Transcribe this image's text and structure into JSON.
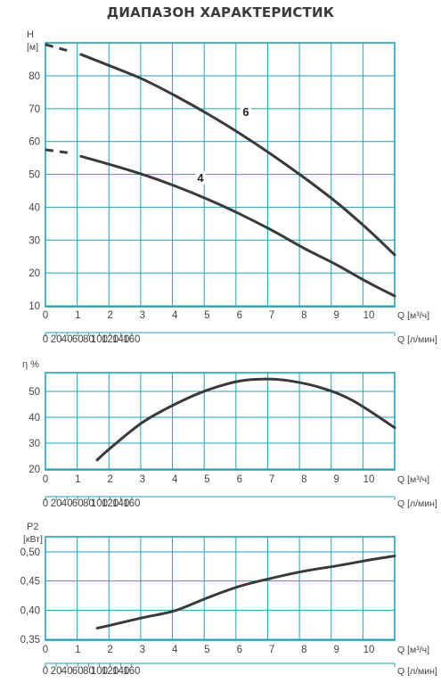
{
  "title": "ДИАПАЗОН ХАРАКТЕРИСТИК",
  "colors": {
    "grid": "#1fa3b4",
    "curve": "#3a3a3a",
    "text": "#444444"
  },
  "chart_data": [
    {
      "type": "line",
      "ylabel": "H",
      "yunit": "[м]",
      "yticks": [
        "10",
        "20",
        "30",
        "40",
        "50",
        "60",
        "70",
        "80"
      ],
      "ylim": [
        10,
        91
      ],
      "xlim": [
        0,
        10.8
      ],
      "x_ticks_m3h": [
        "0",
        "1",
        "2",
        "3",
        "4",
        "5",
        "6",
        "7",
        "8",
        "9",
        "10"
      ],
      "x_unit_m3h": "Q [м³/ч]",
      "x_ticks_lmin": [
        "0",
        "20",
        "40",
        "60",
        "80",
        "100",
        "120",
        "140",
        "160"
      ],
      "x_unit_lmin": "Q [л/мин]",
      "grid": true,
      "series": [
        {
          "name": "6",
          "x": [
            1.1,
            2,
            3,
            4,
            5,
            6,
            7,
            8,
            9,
            10,
            10.8
          ],
          "y": [
            86.5,
            83,
            79,
            74,
            68.5,
            62.5,
            56,
            49,
            41.5,
            33,
            25.5
          ],
          "dashed_x": [
            0,
            0.75
          ],
          "dashed_y": [
            89.5,
            87.5
          ]
        },
        {
          "name": "4",
          "x": [
            1.1,
            2,
            3,
            4,
            5,
            6,
            7,
            8,
            9,
            10,
            10.8
          ],
          "y": [
            55.5,
            53,
            50,
            46.5,
            42.5,
            38,
            33,
            27.5,
            22.5,
            17,
            13
          ],
          "dashed_x": [
            0,
            0.75
          ],
          "dashed_y": [
            57.5,
            56.5
          ]
        }
      ]
    },
    {
      "type": "line",
      "ylabel": "η %",
      "yticks": [
        "20",
        "30",
        "40",
        "50"
      ],
      "ylim": [
        20,
        56
      ],
      "xlim": [
        0,
        10.8
      ],
      "x_ticks_m3h": [
        "0",
        "1",
        "2",
        "3",
        "4",
        "5",
        "6",
        "7",
        "8",
        "9",
        "10"
      ],
      "x_unit_m3h": "Q [м³/ч]",
      "x_ticks_lmin": [
        "0",
        "20",
        "40",
        "60",
        "80",
        "100",
        "120",
        "140",
        "160"
      ],
      "x_unit_lmin": "Q [л/мин]",
      "grid": true,
      "series": [
        {
          "x": [
            1.6,
            2,
            3,
            4,
            5,
            6,
            6.8,
            7.5,
            8.5,
            9.5,
            10.8
          ],
          "y": [
            23.5,
            28,
            38,
            45,
            50.5,
            54,
            54.8,
            54.2,
            51.5,
            46.5,
            36
          ]
        }
      ]
    },
    {
      "type": "line",
      "ylabel": "P2",
      "yunit": "[кВт]",
      "yticks": [
        "0,35",
        "0,40",
        "0,45",
        "0,50"
      ],
      "ylim": [
        0.35,
        0.5
      ],
      "xlim": [
        0,
        10.8
      ],
      "x_ticks_m3h": [
        "0",
        "1",
        "2",
        "3",
        "4",
        "5",
        "6",
        "7",
        "8",
        "9",
        "10"
      ],
      "x_unit_m3h": "Q [м³/ч]",
      "x_ticks_lmin": [
        "0",
        "20",
        "40",
        "60",
        "80",
        "100",
        "120",
        "140",
        "160"
      ],
      "x_unit_lmin": "Q [л/мин]",
      "grid": true,
      "series": [
        {
          "x": [
            1.6,
            2,
            3,
            4,
            5,
            6,
            7,
            8,
            9,
            10,
            10.8
          ],
          "y": [
            0.369,
            0.374,
            0.387,
            0.399,
            0.421,
            0.441,
            0.455,
            0.467,
            0.476,
            0.486,
            0.493
          ]
        }
      ]
    }
  ]
}
